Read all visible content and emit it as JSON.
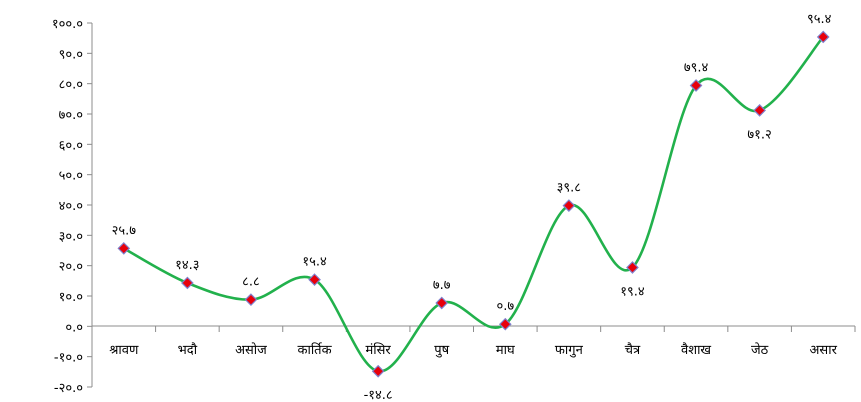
{
  "chart_data": {
    "type": "line",
    "title": "",
    "xlabel": "",
    "ylabel": "",
    "ylim": [
      -20,
      100
    ],
    "y_ticks": [
      "-२०.०",
      "-१०.०",
      "०.०",
      "१०.०",
      "२०.०",
      "३०.०",
      "४०.०",
      "५०.०",
      "६०.०",
      "७०.०",
      "८०.०",
      "९०.०",
      "१००.०"
    ],
    "categories": [
      "श्रावण",
      "भदौ",
      "असोज",
      "कार्तिक",
      "मंसिर",
      "पुष",
      "माघ",
      "फागुन",
      "चैत्र",
      "वैशाख",
      "जेठ",
      "असार"
    ],
    "series": [
      {
        "values": [
          25.7,
          14.3,
          8.8,
          15.4,
          -14.8,
          7.7,
          0.7,
          39.8,
          19.4,
          79.4,
          71.2,
          95.4
        ],
        "labels": [
          "२५.७",
          "१४.३",
          "८.८",
          "१५.४",
          "-१४.८",
          "७.७",
          "०.७",
          "३९.८",
          "१९.४",
          "७९.४",
          "७१.२",
          "९५.४"
        ]
      }
    ],
    "smoothed": true,
    "grid": false,
    "legend": "none",
    "colors": {
      "line": "#22B14C",
      "marker_fill": "#E8000B",
      "marker_edge": "#7F7FCC",
      "axis": "#8C8C8C"
    }
  }
}
